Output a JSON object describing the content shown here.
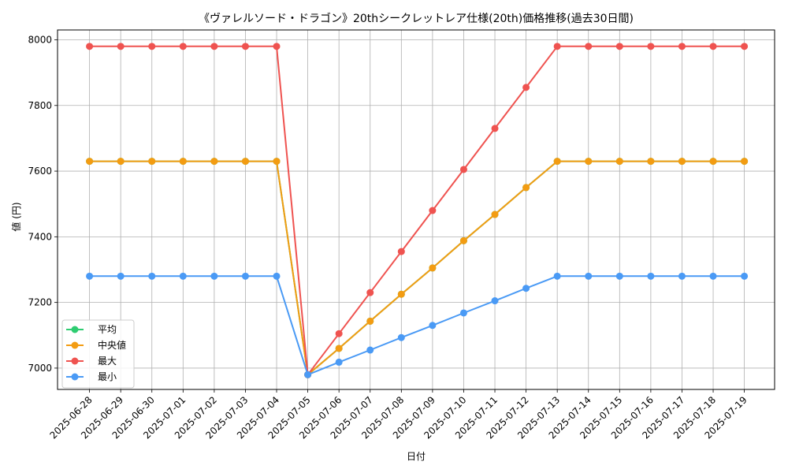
{
  "chart_data": {
    "type": "line",
    "title": "《ヴァレルソード・ドラゴン》20thシークレットレア仕様(20th)価格推移(過去30日間)",
    "xlabel": "日付",
    "ylabel": "値 (円)",
    "categories": [
      "2025-06-28",
      "2025-06-29",
      "2025-06-30",
      "2025-07-01",
      "2025-07-02",
      "2025-07-03",
      "2025-07-04",
      "2025-07-05",
      "2025-07-06",
      "2025-07-07",
      "2025-07-08",
      "2025-07-09",
      "2025-07-10",
      "2025-07-11",
      "2025-07-12",
      "2025-07-13",
      "2025-07-14",
      "2025-07-15",
      "2025-07-16",
      "2025-07-17",
      "2025-07-18",
      "2025-07-19"
    ],
    "ylim": [
      6935,
      8030
    ],
    "yticks": [
      7000,
      7200,
      7400,
      7600,
      7800,
      8000
    ],
    "grid": true,
    "legend_position": "lower-left",
    "series": [
      {
        "name": "平均",
        "color": "#2ecc71",
        "values": [
          7630,
          7630,
          7630,
          7630,
          7630,
          7630,
          7630,
          6980,
          7060,
          7143,
          7225,
          7305,
          7388,
          7468,
          7550,
          7630,
          7630,
          7630,
          7630,
          7630,
          7630,
          7630
        ]
      },
      {
        "name": "中央値",
        "color": "#f39c12",
        "values": [
          7630,
          7630,
          7630,
          7630,
          7630,
          7630,
          7630,
          6980,
          7060,
          7143,
          7225,
          7305,
          7388,
          7468,
          7550,
          7630,
          7630,
          7630,
          7630,
          7630,
          7630,
          7630
        ]
      },
      {
        "name": "最大",
        "color": "#ef5350",
        "values": [
          7980,
          7980,
          7980,
          7980,
          7980,
          7980,
          7980,
          6980,
          7105,
          7230,
          7355,
          7480,
          7605,
          7730,
          7855,
          7980,
          7980,
          7980,
          7980,
          7980,
          7980,
          7980
        ]
      },
      {
        "name": "最小",
        "color": "#4a9af5",
        "values": [
          7280,
          7280,
          7280,
          7280,
          7280,
          7280,
          7280,
          6980,
          7018,
          7055,
          7093,
          7130,
          7168,
          7205,
          7243,
          7280,
          7280,
          7280,
          7280,
          7280,
          7280,
          7280
        ]
      }
    ]
  }
}
